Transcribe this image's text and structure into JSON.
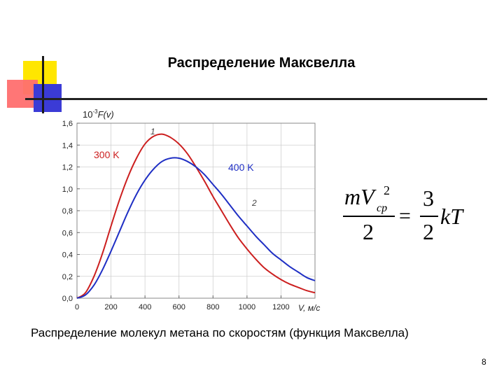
{
  "slide": {
    "title": "Распределение Максвелла",
    "caption": "Распределение молекул метана по скоростям (функция Максвелла)",
    "page_number": "8"
  },
  "chart_data": {
    "type": "line",
    "ylabel_prefix": "10",
    "ylabel_exp": "-3",
    "ylabel_func": "F(v)",
    "xlabel": "V, м/с",
    "xlim": [
      0,
      1400
    ],
    "ylim": [
      0,
      1.6
    ],
    "x_ticks": [
      "0",
      "200",
      "400",
      "600",
      "800",
      "1000",
      "1200"
    ],
    "y_ticks": [
      "0,0",
      "0,2",
      "0,4",
      "0,6",
      "0,8",
      "1,0",
      "1,2",
      "1,4",
      "1,6"
    ],
    "grid": true,
    "series": [
      {
        "name": "1",
        "color": "#cc1f1f",
        "x": [
          0,
          50,
          100,
          150,
          200,
          250,
          300,
          350,
          400,
          450,
          500,
          550,
          600,
          650,
          700,
          750,
          800,
          850,
          900,
          950,
          1000,
          1050,
          1100,
          1150,
          1200,
          1250,
          1300,
          1350,
          1400
        ],
        "y": [
          0,
          0.05,
          0.2,
          0.41,
          0.66,
          0.9,
          1.11,
          1.28,
          1.41,
          1.48,
          1.5,
          1.47,
          1.41,
          1.32,
          1.2,
          1.07,
          0.93,
          0.8,
          0.67,
          0.55,
          0.45,
          0.36,
          0.28,
          0.22,
          0.17,
          0.13,
          0.1,
          0.07,
          0.05
        ]
      },
      {
        "name": "2",
        "color": "#1f2fc4",
        "x": [
          0,
          50,
          100,
          150,
          200,
          250,
          300,
          350,
          400,
          450,
          500,
          550,
          600,
          650,
          700,
          750,
          800,
          850,
          900,
          950,
          1000,
          1050,
          1100,
          1150,
          1200,
          1250,
          1300,
          1350,
          1400
        ],
        "y": [
          0,
          0.03,
          0.12,
          0.26,
          0.43,
          0.61,
          0.79,
          0.95,
          1.08,
          1.18,
          1.25,
          1.28,
          1.28,
          1.25,
          1.2,
          1.13,
          1.04,
          0.95,
          0.85,
          0.75,
          0.66,
          0.57,
          0.49,
          0.41,
          0.35,
          0.29,
          0.24,
          0.19,
          0.16
        ]
      }
    ],
    "annotations": [
      {
        "text": "300 K",
        "color": "#cc1f1f"
      },
      {
        "text": "400 K",
        "color": "#1f2fc4"
      }
    ]
  },
  "formula": {
    "lhs_num": "mV",
    "lhs_sup": "2",
    "lhs_sub": "ср",
    "lhs_den": "2",
    "eq": "=",
    "rhs_num": "3",
    "rhs_den": "2",
    "rhs_tail": "kT"
  }
}
